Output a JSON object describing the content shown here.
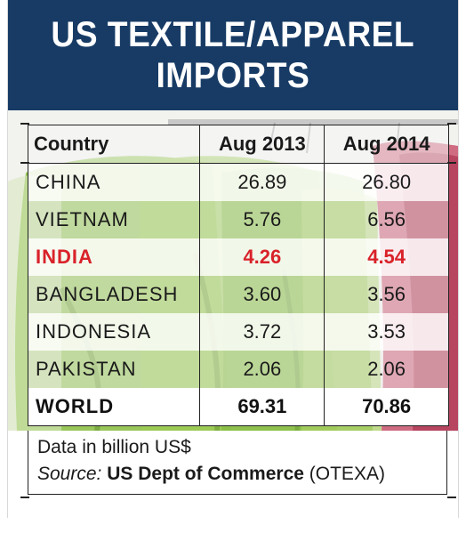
{
  "header": {
    "title_line1": "US TEXTILE/APPAREL",
    "title_line2": "IMPORTS"
  },
  "colors": {
    "header_bg": "#173b65",
    "india_highlight": "#d9222a"
  },
  "chart_data": {
    "type": "table",
    "title": "US TEXTILE/APPAREL IMPORTS",
    "columns": [
      "Country",
      "Aug 2013",
      "Aug 2014"
    ],
    "rows": [
      {
        "country": "CHINA",
        "aug_2013": "26.89",
        "aug_2014": "26.80"
      },
      {
        "country": "VIETNAM",
        "aug_2013": "5.76",
        "aug_2014": "6.56"
      },
      {
        "country": "INDIA",
        "aug_2013": "4.26",
        "aug_2014": "4.54",
        "highlight": true
      },
      {
        "country": "BANGLADESH",
        "aug_2013": "3.60",
        "aug_2014": "3.56"
      },
      {
        "country": "INDONESIA",
        "aug_2013": "3.72",
        "aug_2014": "3.53"
      },
      {
        "country": "PAKISTAN",
        "aug_2013": "2.06",
        "aug_2014": "2.06"
      },
      {
        "country": "WORLD",
        "aug_2013": "69.31",
        "aug_2014": "70.86",
        "total": true
      }
    ],
    "unit_note": "Data in billion US$"
  },
  "footer": {
    "note": "Data in billion US$",
    "source_label": "Source:",
    "source_org": "US Dept of Commerce",
    "source_detail": "(OTEXA)"
  }
}
